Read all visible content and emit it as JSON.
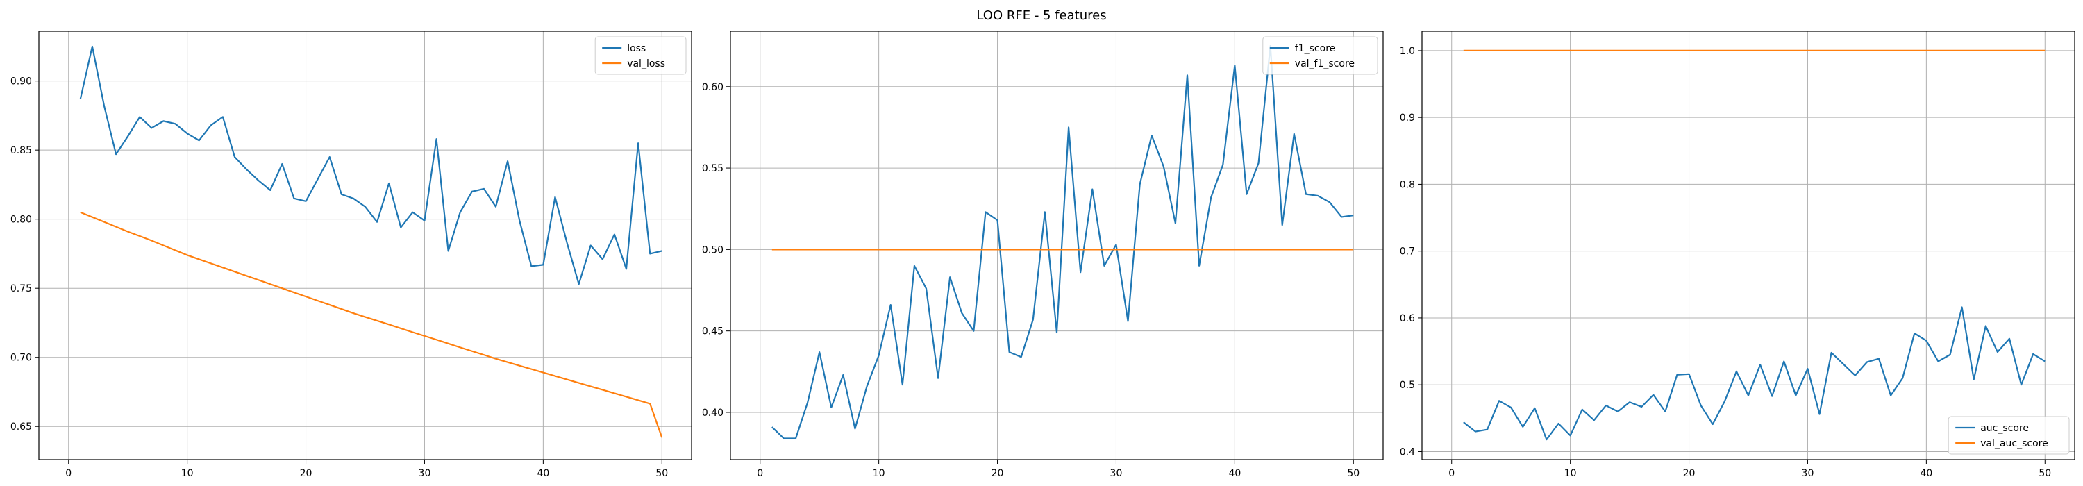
{
  "figure_title": "LOO RFE - 5 features",
  "colors": {
    "blue": "#1f77b4",
    "orange": "#ff7f0e"
  },
  "chart_data": [
    {
      "type": "line",
      "title": "",
      "xlabel": "",
      "ylabel": "",
      "xlim": [
        -2.5,
        52.5
      ],
      "ylim": [
        0.626,
        0.936
      ],
      "xticks": [
        0,
        10,
        20,
        30,
        40,
        50
      ],
      "yticks": [
        0.65,
        0.7,
        0.75,
        0.8,
        0.85,
        0.9
      ],
      "ytick_labels": [
        "0.65",
        "0.70",
        "0.75",
        "0.80",
        "0.85",
        "0.90"
      ],
      "grid": true,
      "legend_position": "top-right",
      "x": [
        1,
        2,
        3,
        4,
        5,
        6,
        7,
        8,
        9,
        10,
        11,
        12,
        13,
        14,
        15,
        16,
        17,
        18,
        19,
        20,
        21,
        22,
        23,
        24,
        25,
        26,
        27,
        28,
        29,
        30,
        31,
        32,
        33,
        34,
        35,
        36,
        37,
        38,
        39,
        40,
        41,
        42,
        43,
        44,
        45,
        46,
        47,
        48,
        49,
        50
      ],
      "series": [
        {
          "name": "loss",
          "color": "#1f77b4",
          "values": [
            0.887,
            0.925,
            0.882,
            0.847,
            0.86,
            0.874,
            0.866,
            0.871,
            0.869,
            0.862,
            0.857,
            0.868,
            0.874,
            0.845,
            0.836,
            0.828,
            0.821,
            0.84,
            0.815,
            0.813,
            0.829,
            0.845,
            0.818,
            0.815,
            0.809,
            0.798,
            0.826,
            0.794,
            0.805,
            0.799,
            0.858,
            0.777,
            0.805,
            0.82,
            0.822,
            0.809,
            0.842,
            0.799,
            0.766,
            0.767,
            0.816,
            0.783,
            0.753,
            0.781,
            0.771,
            0.789,
            0.764,
            0.855,
            0.775,
            0.777
          ]
        },
        {
          "name": "val_loss",
          "color": "#ff7f0e",
          "values": [
            0.805,
            0.8015,
            0.798,
            0.7945,
            0.791,
            0.7878,
            0.7845,
            0.781,
            0.7775,
            0.774,
            0.771,
            0.768,
            0.765,
            0.762,
            0.759,
            0.756,
            0.753,
            0.75,
            0.747,
            0.744,
            0.741,
            0.738,
            0.735,
            0.732,
            0.7292,
            0.7265,
            0.7238,
            0.721,
            0.7182,
            0.7155,
            0.7128,
            0.71,
            0.7072,
            0.7045,
            0.7018,
            0.699,
            0.6965,
            0.694,
            0.6915,
            0.689,
            0.6865,
            0.684,
            0.6815,
            0.679,
            0.6765,
            0.674,
            0.6715,
            0.669,
            0.6665,
            0.642
          ]
        }
      ]
    },
    {
      "type": "line",
      "title": "",
      "xlabel": "",
      "ylabel": "",
      "xlim": [
        -2.5,
        52.5
      ],
      "ylim": [
        0.371,
        0.634
      ],
      "xticks": [
        0,
        10,
        20,
        30,
        40,
        50
      ],
      "yticks": [
        0.4,
        0.45,
        0.5,
        0.55,
        0.6
      ],
      "ytick_labels": [
        "0.40",
        "0.45",
        "0.50",
        "0.55",
        "0.60"
      ],
      "grid": true,
      "legend_position": "top-right",
      "x": [
        1,
        2,
        3,
        4,
        5,
        6,
        7,
        8,
        9,
        10,
        11,
        12,
        13,
        14,
        15,
        16,
        17,
        18,
        19,
        20,
        21,
        22,
        23,
        24,
        25,
        26,
        27,
        28,
        29,
        30,
        31,
        32,
        33,
        34,
        35,
        36,
        37,
        38,
        39,
        40,
        41,
        42,
        43,
        44,
        45,
        46,
        47,
        48,
        49,
        50
      ],
      "series": [
        {
          "name": "f1_score",
          "color": "#1f77b4",
          "values": [
            0.391,
            0.384,
            0.384,
            0.406,
            0.437,
            0.403,
            0.423,
            0.39,
            0.416,
            0.435,
            0.466,
            0.417,
            0.49,
            0.476,
            0.421,
            0.483,
            0.461,
            0.45,
            0.523,
            0.518,
            0.437,
            0.434,
            0.457,
            0.523,
            0.449,
            0.575,
            0.486,
            0.537,
            0.49,
            0.503,
            0.456,
            0.54,
            0.57,
            0.551,
            0.516,
            0.607,
            0.49,
            0.532,
            0.552,
            0.613,
            0.534,
            0.553,
            0.625,
            0.515,
            0.571,
            0.534,
            0.533,
            0.529,
            0.52,
            0.521
          ]
        },
        {
          "name": "val_f1_score",
          "color": "#ff7f0e",
          "values": [
            0.5,
            0.5,
            0.5,
            0.5,
            0.5,
            0.5,
            0.5,
            0.5,
            0.5,
            0.5,
            0.5,
            0.5,
            0.5,
            0.5,
            0.5,
            0.5,
            0.5,
            0.5,
            0.5,
            0.5,
            0.5,
            0.5,
            0.5,
            0.5,
            0.5,
            0.5,
            0.5,
            0.5,
            0.5,
            0.5,
            0.5,
            0.5,
            0.5,
            0.5,
            0.5,
            0.5,
            0.5,
            0.5,
            0.5,
            0.5,
            0.5,
            0.5,
            0.5,
            0.5,
            0.5,
            0.5,
            0.5,
            0.5,
            0.5,
            0.5
          ]
        }
      ]
    },
    {
      "type": "line",
      "title": "",
      "xlabel": "",
      "ylabel": "",
      "xlim": [
        -2.5,
        52.5
      ],
      "ylim": [
        0.388,
        1.029
      ],
      "xticks": [
        0,
        10,
        20,
        30,
        40,
        50
      ],
      "yticks": [
        0.4,
        0.5,
        0.6,
        0.7,
        0.8,
        0.9,
        1.0
      ],
      "ytick_labels": [
        "0.4",
        "0.5",
        "0.6",
        "0.7",
        "0.8",
        "0.9",
        "1.0"
      ],
      "grid": true,
      "legend_position": "lower-right",
      "x": [
        1,
        2,
        3,
        4,
        5,
        6,
        7,
        8,
        9,
        10,
        11,
        12,
        13,
        14,
        15,
        16,
        17,
        18,
        19,
        20,
        21,
        22,
        23,
        24,
        25,
        26,
        27,
        28,
        29,
        30,
        31,
        32,
        33,
        34,
        35,
        36,
        37,
        38,
        39,
        40,
        41,
        42,
        43,
        44,
        45,
        46,
        47,
        48,
        49,
        50
      ],
      "series": [
        {
          "name": "auc_score",
          "color": "#1f77b4",
          "values": [
            0.444,
            0.43,
            0.433,
            0.476,
            0.466,
            0.437,
            0.465,
            0.418,
            0.442,
            0.424,
            0.463,
            0.447,
            0.469,
            0.46,
            0.474,
            0.467,
            0.485,
            0.46,
            0.515,
            0.516,
            0.469,
            0.441,
            0.475,
            0.52,
            0.484,
            0.53,
            0.483,
            0.535,
            0.484,
            0.524,
            0.456,
            0.548,
            0.531,
            0.514,
            0.534,
            0.539,
            0.484,
            0.51,
            0.577,
            0.566,
            0.535,
            0.545,
            0.616,
            0.508,
            0.588,
            0.549,
            0.569,
            0.5,
            0.546,
            0.535
          ]
        },
        {
          "name": "val_auc_score",
          "color": "#ff7f0e",
          "values": [
            1.0,
            1.0,
            1.0,
            1.0,
            1.0,
            1.0,
            1.0,
            1.0,
            1.0,
            1.0,
            1.0,
            1.0,
            1.0,
            1.0,
            1.0,
            1.0,
            1.0,
            1.0,
            1.0,
            1.0,
            1.0,
            1.0,
            1.0,
            1.0,
            1.0,
            1.0,
            1.0,
            1.0,
            1.0,
            1.0,
            1.0,
            1.0,
            1.0,
            1.0,
            1.0,
            1.0,
            1.0,
            1.0,
            1.0,
            1.0,
            1.0,
            1.0,
            1.0,
            1.0,
            1.0,
            1.0,
            1.0,
            1.0,
            1.0,
            1.0
          ]
        }
      ]
    }
  ]
}
